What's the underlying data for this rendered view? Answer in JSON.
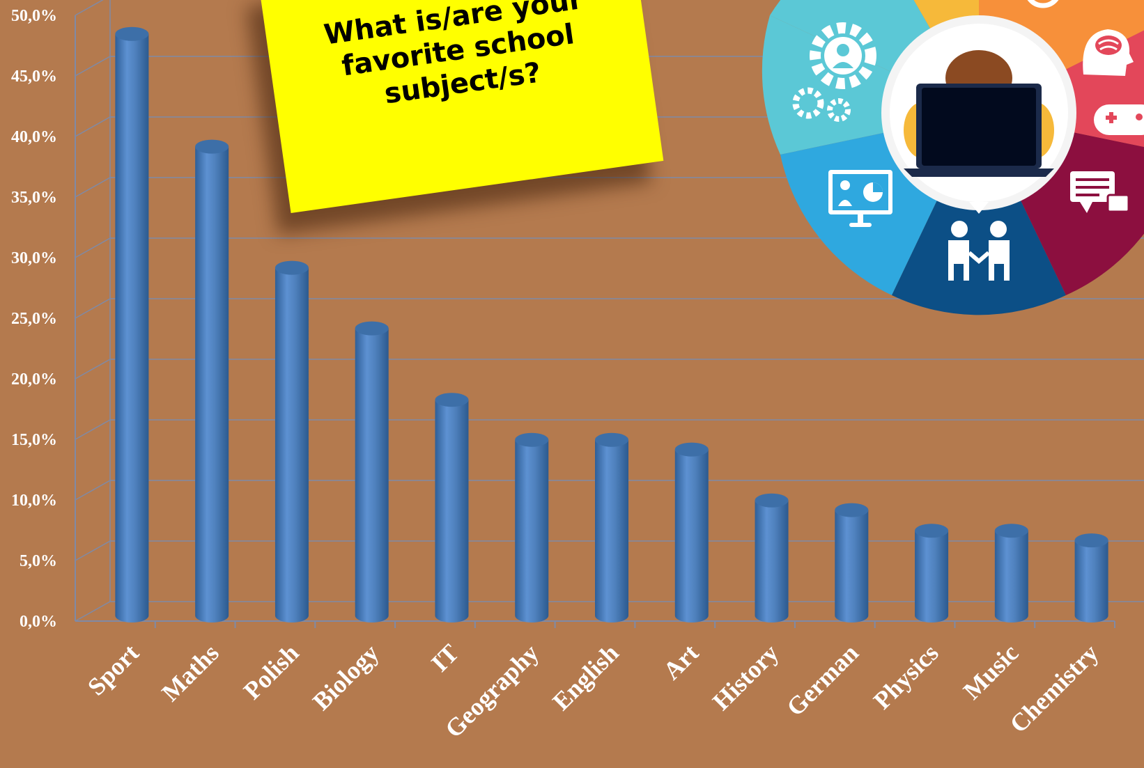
{
  "note": {
    "title": "What is/are your\nfavorite school\nsubject/s?"
  },
  "colors": {
    "background": "#b47a4e",
    "bar": "#4f81bd",
    "grid": "#7f8aa6",
    "note": "#ffff00"
  },
  "graphic": {
    "icons": [
      "person-gear-icon",
      "gears-icon",
      "head-icon",
      "target-icon",
      "brain-head-icon",
      "gamepad-icon",
      "chat-icon",
      "handshake-icon",
      "presentation-icon",
      "laptop-user-icon"
    ],
    "segment_colors": [
      "#5bc8d6",
      "#2fa8df",
      "#0c4f86",
      "#8c0f3f",
      "#e3475a",
      "#f7903a",
      "#f6b93a"
    ]
  },
  "chart_data": {
    "type": "bar",
    "style": "3d-cylinder",
    "categories": [
      "Sport",
      "Maths",
      "Polish",
      "Biology",
      "IT",
      "Geography",
      "English",
      "Art",
      "History",
      "German",
      "Physics",
      "Music",
      "Chemistry"
    ],
    "values": [
      48.0,
      38.7,
      28.7,
      23.7,
      17.8,
      14.5,
      14.5,
      13.7,
      9.5,
      8.7,
      7.0,
      7.0,
      6.2
    ],
    "y_unit": "%",
    "ylim": [
      0,
      50
    ],
    "yticks": [
      "0,0%",
      "5,0%",
      "10,0%",
      "15,0%",
      "20,0%",
      "25,0%",
      "30,0%",
      "35,0%",
      "40,0%",
      "45,0%",
      "50,0%"
    ],
    "grid": true,
    "legend": "none",
    "title": "",
    "xlabel": "",
    "ylabel": ""
  }
}
